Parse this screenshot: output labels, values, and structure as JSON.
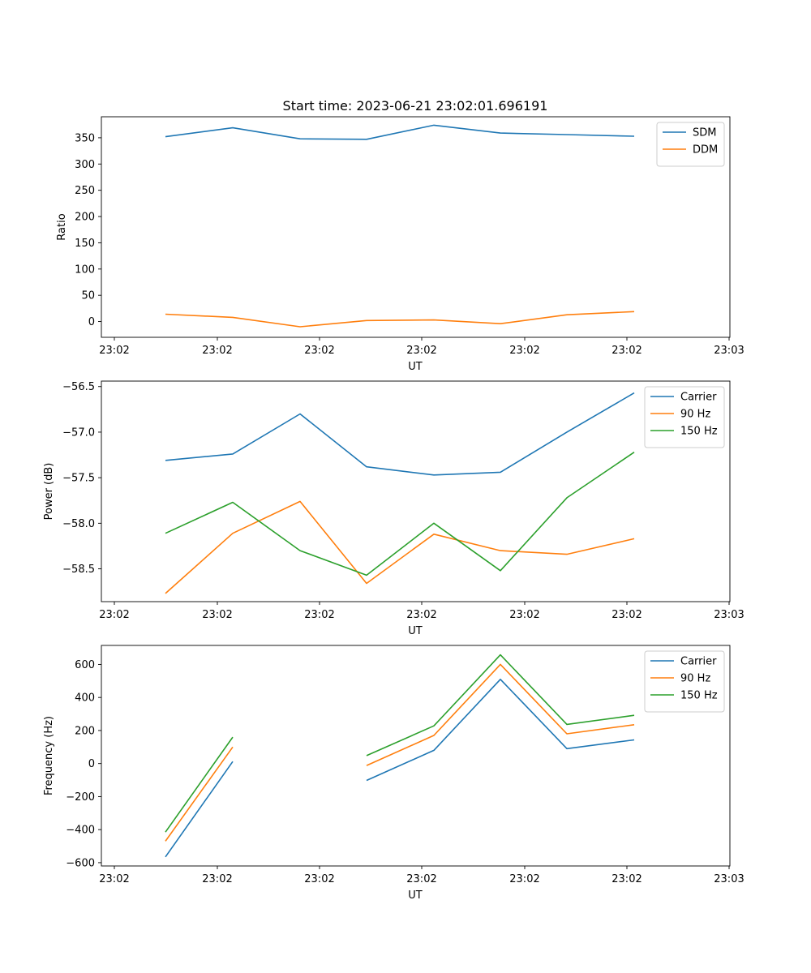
{
  "title": "Start time: 2023-06-21 23:02:01.696191",
  "chart_data": [
    {
      "type": "line",
      "xlabel": "UT",
      "ylabel": "Ratio",
      "x_tick_labels": [
        "23:02",
        "23:02",
        "23:02",
        "23:02",
        "23:02",
        "23:02",
        "23:03"
      ],
      "y_ticks": [
        0,
        50,
        100,
        150,
        200,
        250,
        300,
        350
      ],
      "ylim": [
        -30,
        390
      ],
      "grid": false,
      "legend_position": "top-right",
      "series": [
        {
          "name": "SDM",
          "color": "#1f77b4",
          "values": [
            352,
            369,
            348,
            347,
            374,
            359,
            356,
            353
          ]
        },
        {
          "name": "DDM",
          "color": "#ff7f0e",
          "values": [
            14,
            8,
            -10,
            2,
            3,
            -4,
            13,
            19
          ]
        }
      ]
    },
    {
      "type": "line",
      "xlabel": "UT",
      "ylabel": "Power (dB)",
      "x_tick_labels": [
        "23:02",
        "23:02",
        "23:02",
        "23:02",
        "23:02",
        "23:02",
        "23:03"
      ],
      "y_ticks": [
        -58.5,
        -58.0,
        -57.5,
        -57.0,
        -56.5
      ],
      "y_tick_labels": [
        "−58.5",
        "−58.0",
        "−57.5",
        "−57.0",
        "−56.5"
      ],
      "ylim": [
        -58.86,
        -56.44
      ],
      "grid": false,
      "legend_position": "top-right",
      "series": [
        {
          "name": "Carrier",
          "color": "#1f77b4",
          "values": [
            -57.31,
            -57.24,
            -56.8,
            -57.38,
            -57.47,
            -57.44,
            -57.0,
            -56.57
          ]
        },
        {
          "name": "90 Hz",
          "color": "#ff7f0e",
          "values": [
            -58.77,
            -58.11,
            -57.76,
            -58.66,
            -58.12,
            -58.3,
            -58.34,
            -58.17
          ]
        },
        {
          "name": "150 Hz",
          "color": "#2ca02c",
          "values": [
            -58.11,
            -57.77,
            -58.3,
            -58.57,
            -58.0,
            -58.52,
            -57.72,
            -57.22
          ]
        }
      ]
    },
    {
      "type": "line",
      "xlabel": "UT",
      "ylabel": "Frequency (Hz)",
      "x_tick_labels": [
        "23:02",
        "23:02",
        "23:02",
        "23:02",
        "23:02",
        "23:02",
        "23:03"
      ],
      "y_ticks": [
        -600,
        -400,
        -200,
        0,
        200,
        400,
        600
      ],
      "y_tick_labels": [
        "−600",
        "−400",
        "−200",
        "0",
        "200",
        "400",
        "600"
      ],
      "ylim": [
        -620,
        715
      ],
      "grid": false,
      "legend_position": "top-right",
      "series": [
        {
          "name": "Carrier",
          "color": "#1f77b4",
          "values": [
            -565,
            12,
            null,
            -102,
            80,
            510,
            90,
            143
          ]
        },
        {
          "name": "90 Hz",
          "color": "#ff7f0e",
          "values": [
            -470,
            100,
            null,
            -12,
            170,
            600,
            180,
            235
          ]
        },
        {
          "name": "150 Hz",
          "color": "#2ca02c",
          "values": [
            -415,
            160,
            null,
            48,
            228,
            658,
            237,
            292
          ]
        }
      ]
    }
  ]
}
